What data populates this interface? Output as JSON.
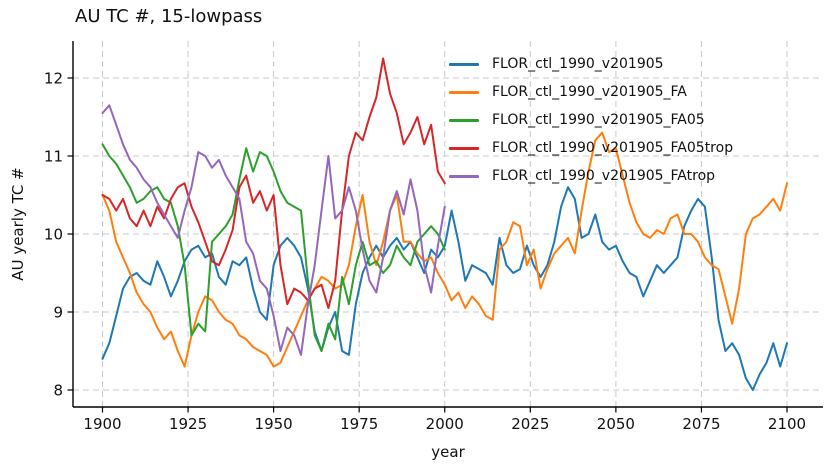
{
  "figure": {
    "title": "AU TC #, 15-lowpass",
    "xlabel": "year",
    "ylabel": "AU yearly TC #"
  },
  "chart_data": {
    "type": "line",
    "title": "AU TC #, 15-lowpass",
    "xlabel": "year",
    "ylabel": "AU yearly TC #",
    "xlim": [
      1891,
      2110.5
    ],
    "ylim": [
      7.78,
      12.47
    ],
    "x_ticks": [
      1900,
      1925,
      1950,
      1975,
      2000,
      2025,
      2050,
      2075,
      2100
    ],
    "y_ticks": [
      8,
      9,
      10,
      11,
      12
    ],
    "grid": true,
    "grid_style": "dashed",
    "grid_color": "#c9c9c9",
    "legend_position": "upper right area, no frame",
    "line_width": 2,
    "series": [
      {
        "name": "FLOR_ctl_1990_v201905",
        "color": "#1f77b4",
        "x_start": 1900,
        "x_step": 2,
        "values": [
          8.4,
          8.6,
          8.95,
          9.3,
          9.45,
          9.5,
          9.4,
          9.35,
          9.65,
          9.45,
          9.2,
          9.4,
          9.65,
          9.8,
          9.85,
          9.7,
          9.75,
          9.45,
          9.35,
          9.65,
          9.6,
          9.7,
          9.3,
          9.0,
          8.9,
          9.6,
          9.85,
          9.95,
          9.85,
          9.7,
          9.3,
          8.75,
          8.5,
          8.8,
          9.0,
          8.5,
          8.45,
          9.1,
          9.5,
          9.7,
          9.85,
          9.7,
          9.85,
          9.95,
          9.8,
          9.9,
          9.7,
          9.5,
          9.8,
          9.7,
          9.85,
          10.3,
          9.9,
          9.4,
          9.6,
          9.55,
          9.5,
          9.35,
          9.95,
          9.6,
          9.5,
          9.55,
          9.85,
          9.6,
          9.45,
          9.6,
          9.9,
          10.35,
          10.6,
          10.45,
          9.95,
          10.0,
          10.25,
          9.9,
          9.8,
          9.85,
          9.65,
          9.5,
          9.45,
          9.2,
          9.4,
          9.6,
          9.5,
          9.6,
          9.7,
          10.1,
          10.3,
          10.45,
          10.35,
          9.7,
          8.9,
          8.5,
          8.6,
          8.45,
          8.15,
          8.0,
          8.2,
          8.35,
          8.6,
          8.3,
          8.6
        ]
      },
      {
        "name": "FLOR_ctl_1990_v201905_FA",
        "color": "#ff7f0e",
        "x_start": 1900,
        "x_step": 2,
        "values": [
          10.5,
          10.3,
          9.9,
          9.7,
          9.5,
          9.25,
          9.1,
          9.0,
          8.8,
          8.65,
          8.75,
          8.5,
          8.3,
          8.7,
          9.0,
          9.2,
          9.15,
          9.0,
          8.9,
          8.85,
          8.7,
          8.65,
          8.55,
          8.5,
          8.45,
          8.3,
          8.35,
          8.55,
          8.75,
          8.95,
          9.15,
          9.3,
          9.45,
          9.4,
          9.3,
          9.35,
          9.6,
          10.1,
          10.5,
          9.9,
          9.6,
          9.9,
          10.3,
          10.5,
          9.9,
          9.9,
          9.75,
          9.65,
          9.7,
          9.5,
          9.35,
          9.15,
          9.25,
          9.05,
          9.2,
          9.1,
          8.95,
          8.9,
          9.8,
          9.9,
          10.15,
          10.1,
          9.6,
          9.8,
          9.3,
          9.55,
          9.75,
          9.85,
          9.95,
          9.75,
          10.3,
          10.8,
          11.2,
          11.3,
          11.05,
          11.1,
          10.75,
          10.4,
          10.15,
          10.0,
          9.95,
          10.05,
          10.0,
          10.2,
          10.25,
          10.0,
          10.0,
          9.9,
          9.7,
          9.6,
          9.55,
          9.2,
          8.85,
          9.3,
          10.0,
          10.2,
          10.25,
          10.35,
          10.45,
          10.3,
          10.65
        ]
      },
      {
        "name": "FLOR_ctl_1990_v201905_FA05",
        "color": "#2ca02c",
        "x_start": 1900,
        "x_step": 2,
        "values": [
          11.15,
          11.0,
          10.9,
          10.75,
          10.6,
          10.4,
          10.45,
          10.55,
          10.6,
          10.45,
          10.4,
          10.1,
          9.6,
          8.7,
          8.85,
          8.75,
          9.9,
          10.0,
          10.1,
          10.25,
          10.7,
          11.1,
          10.8,
          11.05,
          11.0,
          10.8,
          10.55,
          10.4,
          10.35,
          10.3,
          9.4,
          8.7,
          8.5,
          8.85,
          8.65,
          9.45,
          9.1,
          9.6,
          9.9,
          9.6,
          9.65,
          9.5,
          9.6,
          9.85,
          9.7,
          9.6,
          9.9,
          10.0,
          10.1,
          10.0,
          9.8
        ]
      },
      {
        "name": "FLOR_ctl_1990_v201905_FA05trop",
        "color": "#d62728",
        "x_start": 1900,
        "x_step": 2,
        "values": [
          10.5,
          10.45,
          10.3,
          10.45,
          10.2,
          10.1,
          10.3,
          10.1,
          10.35,
          10.2,
          10.45,
          10.6,
          10.65,
          10.35,
          10.15,
          9.9,
          9.65,
          9.6,
          9.8,
          10.05,
          10.6,
          10.75,
          10.4,
          10.55,
          10.3,
          10.5,
          9.6,
          9.1,
          9.3,
          9.25,
          9.15,
          9.3,
          9.35,
          9.05,
          9.4,
          10.3,
          11.0,
          11.3,
          11.2,
          11.5,
          11.75,
          12.25,
          11.8,
          11.55,
          11.15,
          11.3,
          11.5,
          11.15,
          11.4,
          10.8,
          10.65
        ]
      },
      {
        "name": "FLOR_ctl_1990_v201905_FAtrop",
        "color": "#9467bd",
        "x_start": 1900,
        "x_step": 2,
        "values": [
          11.55,
          11.65,
          11.4,
          11.15,
          10.95,
          10.85,
          10.7,
          10.6,
          10.4,
          10.25,
          10.1,
          9.95,
          10.3,
          10.6,
          11.05,
          11.0,
          10.85,
          10.95,
          10.75,
          10.6,
          10.45,
          9.9,
          9.75,
          9.4,
          9.3,
          8.95,
          8.5,
          8.8,
          8.7,
          8.45,
          9.1,
          9.6,
          10.3,
          11.0,
          10.2,
          10.3,
          10.6,
          10.3,
          9.8,
          9.4,
          9.25,
          9.7,
          10.3,
          10.55,
          10.25,
          10.7,
          10.3,
          9.6,
          9.25,
          9.85,
          10.35
        ]
      }
    ]
  }
}
